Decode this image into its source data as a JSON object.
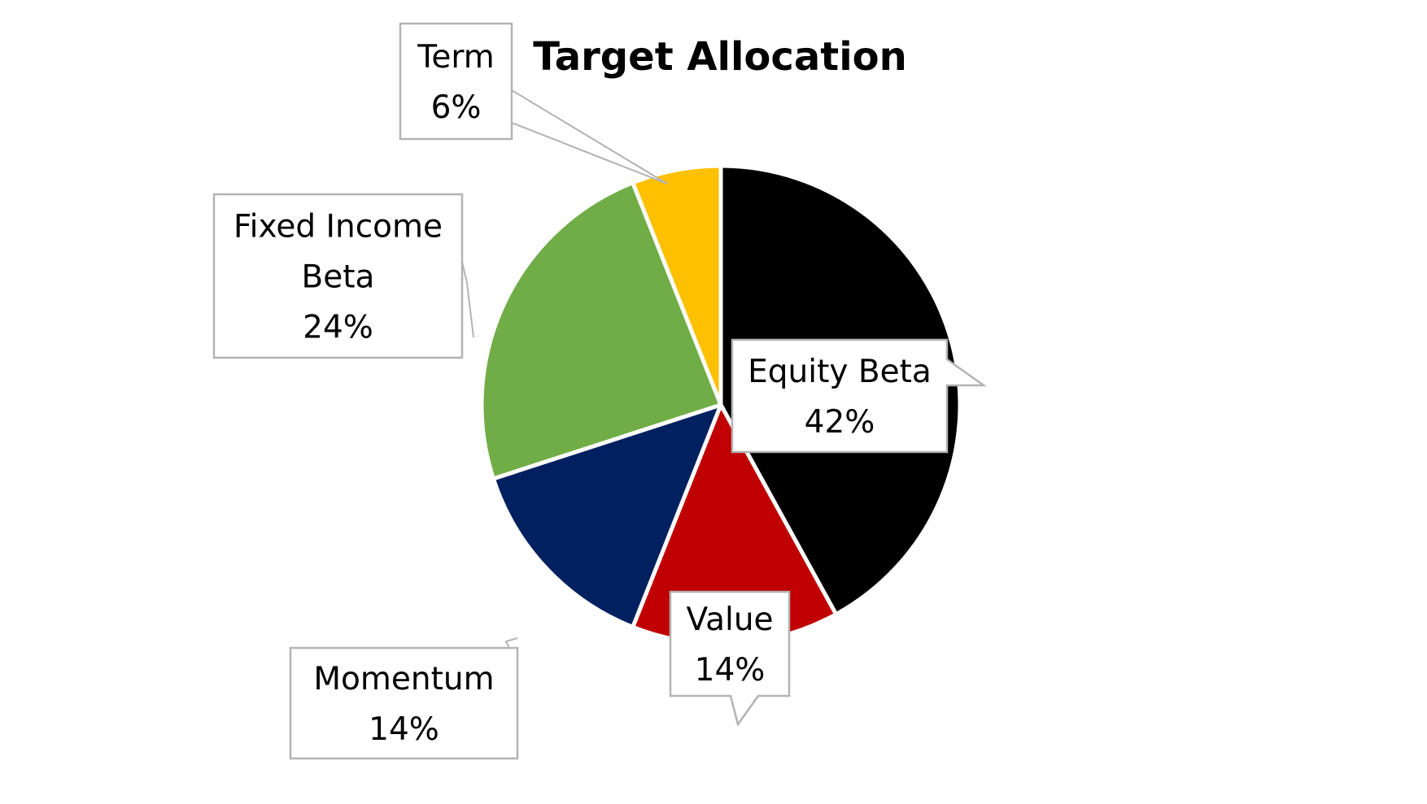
{
  "chart_data": {
    "type": "pie",
    "title": "Target Allocation",
    "start_angle_deg": 0,
    "direction": "clockwise",
    "slices": [
      {
        "label": "Equity Beta",
        "label_lines": [
          "Equity Beta"
        ],
        "value": 42,
        "value_label": "42%",
        "color": "#000000"
      },
      {
        "label": "Value",
        "label_lines": [
          "Value"
        ],
        "value": 14,
        "value_label": "14%",
        "color": "#c00000"
      },
      {
        "label": "Momentum",
        "label_lines": [
          "Momentum"
        ],
        "value": 14,
        "value_label": "14%",
        "color": "#002060"
      },
      {
        "label": "Fixed Income Beta",
        "label_lines": [
          "Fixed Income",
          "Beta"
        ],
        "value": 24,
        "value_label": "24%",
        "color": "#70ad47"
      },
      {
        "label": "Term",
        "label_lines": [
          "Term"
        ],
        "value": 6,
        "value_label": "6%",
        "color": "#ffc000"
      }
    ],
    "label_style": "callout",
    "callout_border_color": "#b3b3b3",
    "legend": "none"
  }
}
